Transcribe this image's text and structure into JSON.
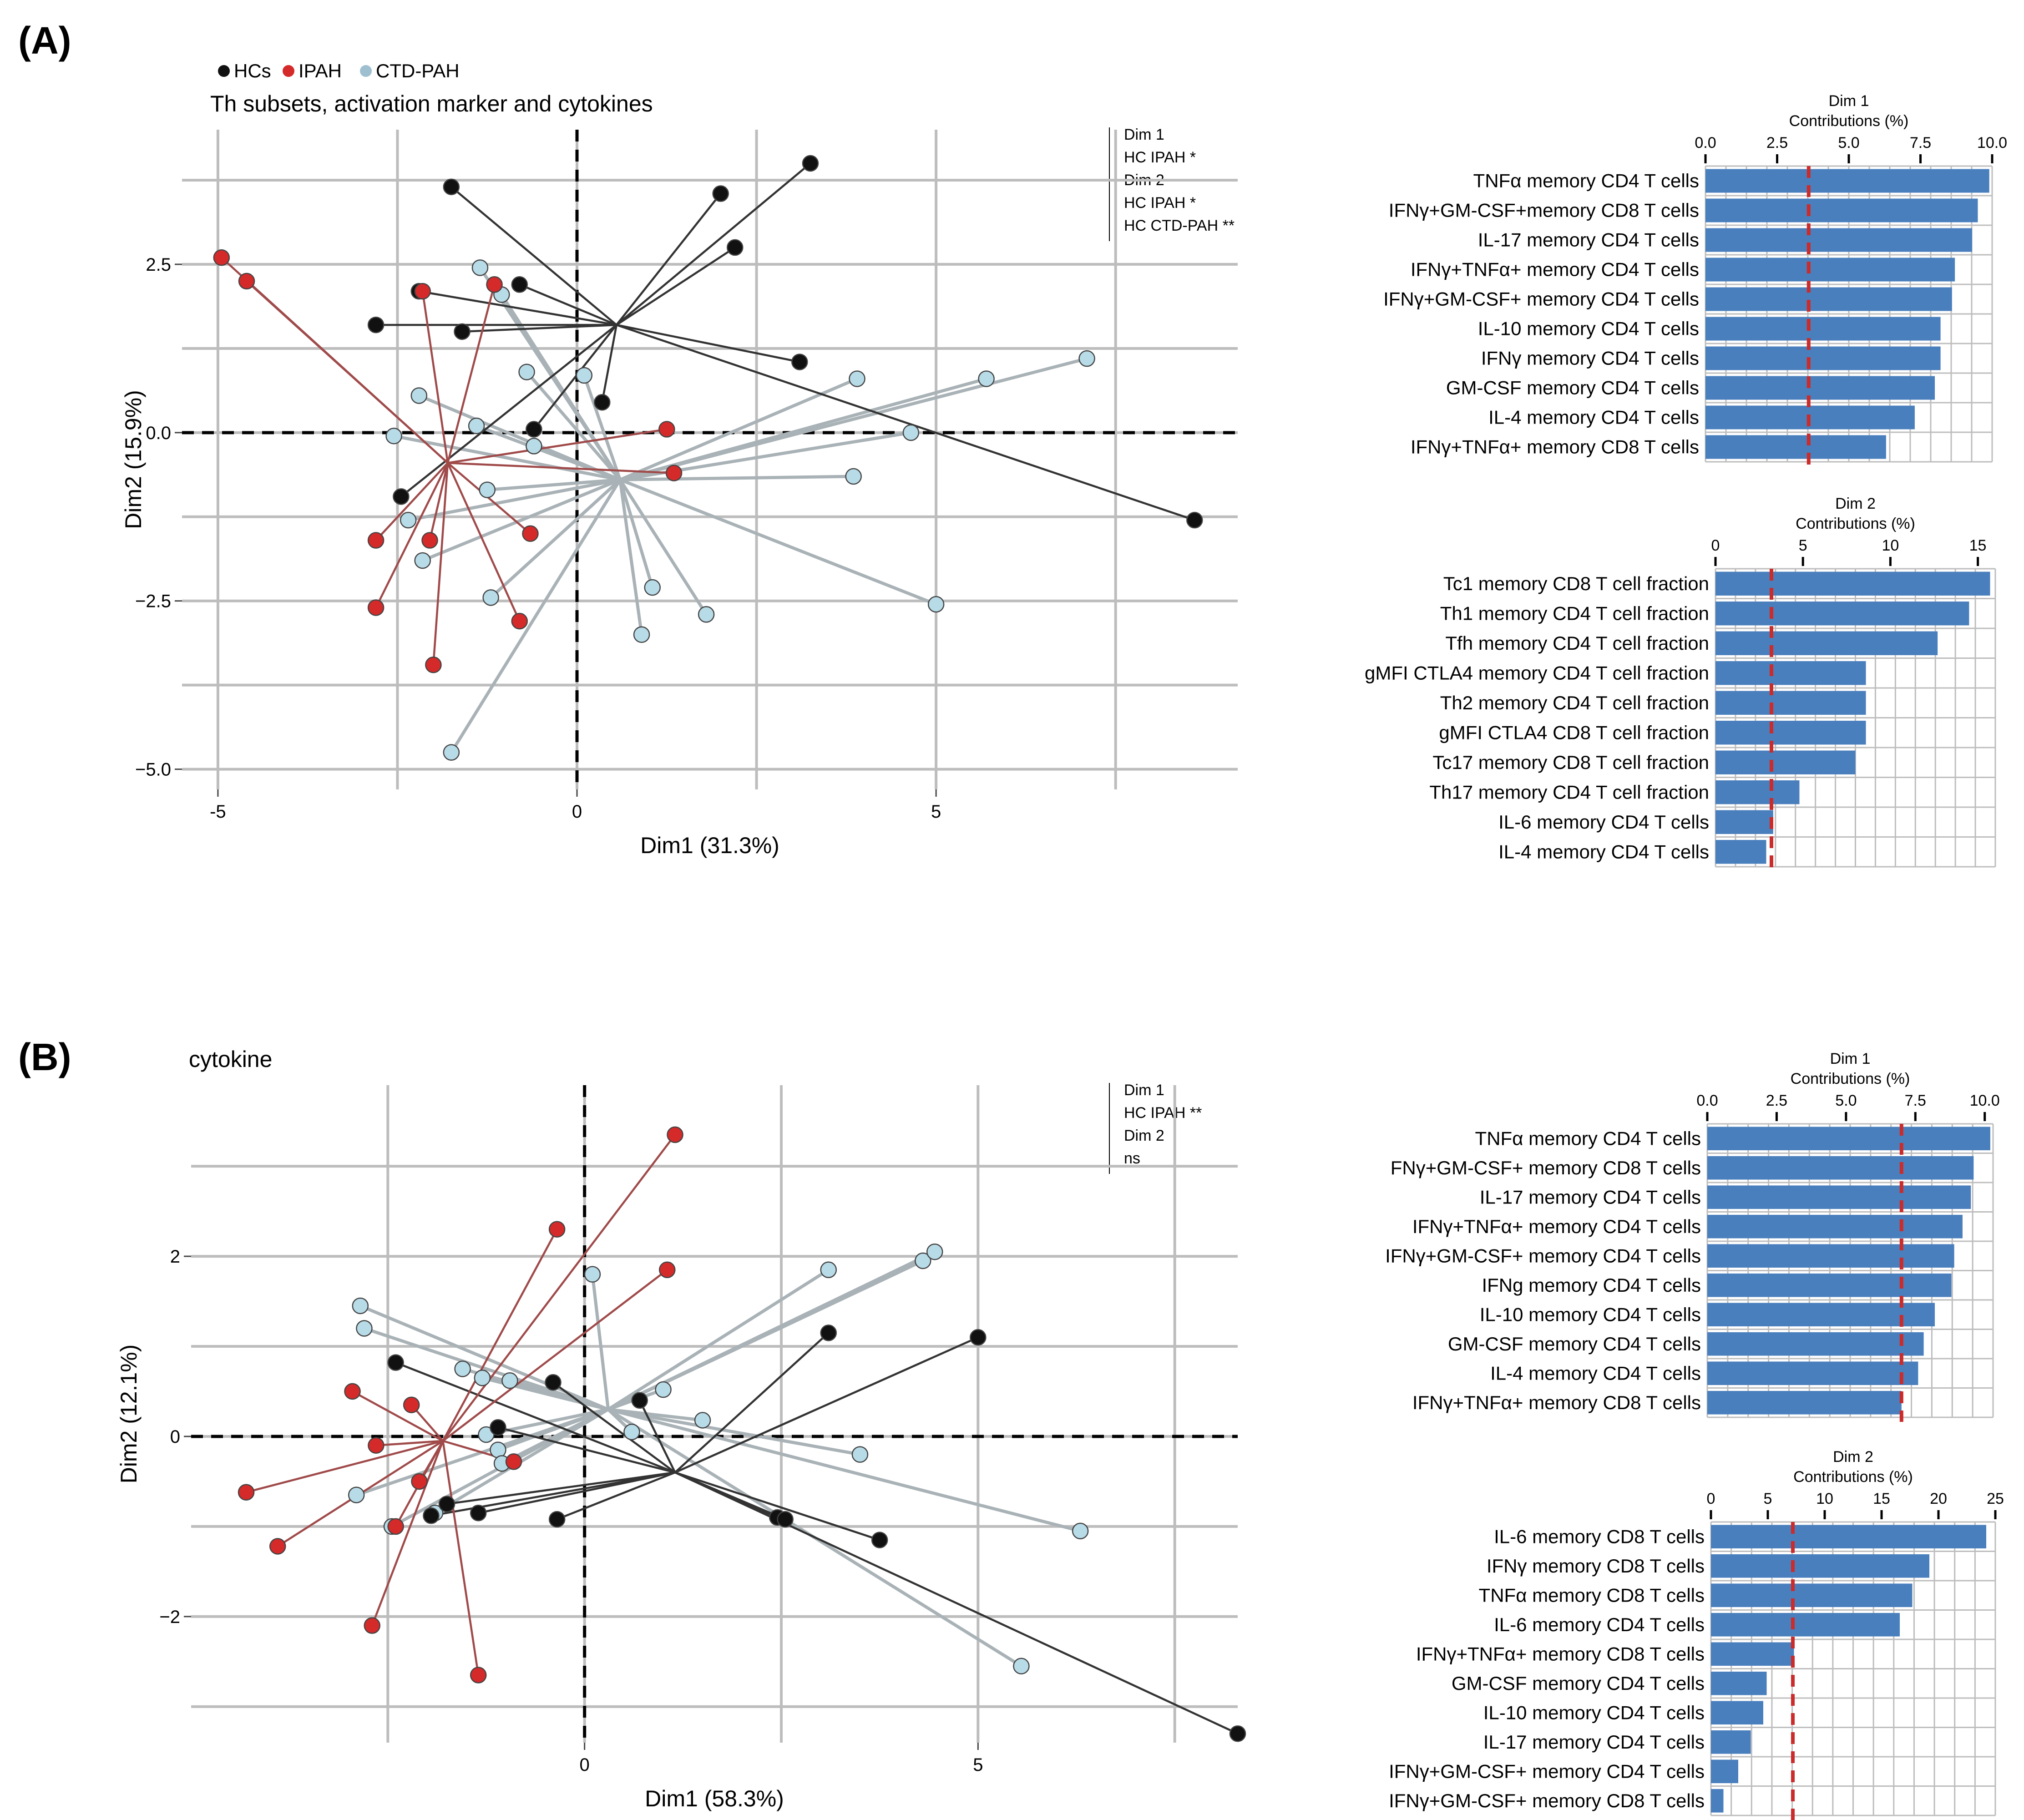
{
  "panels": [
    {
      "tag": "(A)",
      "legend": [
        {
          "label": "HCs",
          "color": "#111111"
        },
        {
          "label": "IPAH",
          "color": "#d42a2a"
        },
        {
          "label": "CTD-PAH",
          "color": "#9dbfd0"
        }
      ],
      "title": "Th subsets, activation marker and cytokines",
      "annotation": [
        "Dim 1",
        "HC IPAH *",
        "Dim 2",
        "HC IPAH *",
        "HC CTD-PAH **"
      ]
    },
    {
      "tag": "(B)",
      "legend": [],
      "title": "cytokine",
      "annotation": [
        "Dim 1",
        "HC IPAH **",
        "Dim 2",
        "ns"
      ]
    }
  ],
  "colors": {
    "HC": "#111111",
    "IPAH": "#d42a2a",
    "CTD": "#b8dbe8",
    "CTD_line": "#a9b2b6",
    "HC_line": "#333333",
    "IPAH_line": "#a04a4a",
    "bar": "#4a7fbd",
    "threshold": "#cc2b2b",
    "grid": "#bdbdbd"
  },
  "chart_data": [
    {
      "id": "A-pca",
      "type": "scatter",
      "title": "Th subsets, activation marker and cytokines",
      "xlabel": "Dim1 (31.3%)",
      "ylabel": "Dim2 (15.9%)",
      "xlim": [
        -5.5,
        9.2
      ],
      "ylim": [
        -5.3,
        4.5
      ],
      "xgrid": [
        -5,
        -2.5,
        0,
        2.5,
        5,
        7.5
      ],
      "ygrid": [
        -5,
        -3.75,
        -2.5,
        -1.25,
        0,
        1.25,
        2.5,
        3.75
      ],
      "xticks": [
        {
          "v": -5,
          "l": "-5"
        },
        {
          "v": 0,
          "l": "0"
        },
        {
          "v": 5,
          "l": "5"
        }
      ],
      "yticks": [
        {
          "v": -5,
          "l": "−5.0"
        },
        {
          "v": -2.5,
          "l": "−2.5"
        },
        {
          "v": 0,
          "l": "0.0"
        },
        {
          "v": 2.5,
          "l": "2.5"
        }
      ],
      "centroids": {
        "HC": [
          0.55,
          1.6
        ],
        "IPAH": [
          -1.8,
          -0.45
        ],
        "CTD": [
          0.6,
          -0.7
        ]
      },
      "groups": [
        {
          "name": "HC",
          "points": [
            [
              -1.75,
              3.65
            ],
            [
              2.0,
              3.55
            ],
            [
              3.25,
              4.0
            ],
            [
              2.2,
              2.75
            ],
            [
              -2.2,
              2.1
            ],
            [
              -0.8,
              2.2
            ],
            [
              -2.8,
              1.6
            ],
            [
              -1.6,
              1.5
            ],
            [
              3.1,
              1.05
            ],
            [
              0.35,
              0.45
            ],
            [
              -0.6,
              0.05
            ],
            [
              -2.45,
              -0.95
            ],
            [
              8.6,
              -1.3
            ]
          ]
        },
        {
          "name": "IPAH",
          "points": [
            [
              -4.95,
              2.6
            ],
            [
              -4.6,
              2.25
            ],
            [
              -2.15,
              2.1
            ],
            [
              -1.15,
              2.2
            ],
            [
              1.25,
              0.05
            ],
            [
              1.35,
              -0.6
            ],
            [
              -2.8,
              -1.6
            ],
            [
              -2.05,
              -1.6
            ],
            [
              -0.65,
              -1.5
            ],
            [
              -2.8,
              -2.6
            ],
            [
              -0.8,
              -2.8
            ],
            [
              -2.0,
              -3.45
            ]
          ]
        },
        {
          "name": "CTD",
          "points": [
            [
              -1.35,
              2.45
            ],
            [
              -1.05,
              2.05
            ],
            [
              -0.7,
              0.9
            ],
            [
              0.1,
              0.85
            ],
            [
              3.9,
              0.8
            ],
            [
              5.7,
              0.8
            ],
            [
              7.1,
              1.1
            ],
            [
              -2.2,
              0.55
            ],
            [
              -1.4,
              0.1
            ],
            [
              -2.55,
              -0.05
            ],
            [
              -0.6,
              -0.2
            ],
            [
              4.65,
              0.0
            ],
            [
              -1.25,
              -0.85
            ],
            [
              3.85,
              -0.65
            ],
            [
              -2.35,
              -1.3
            ],
            [
              -2.15,
              -1.9
            ],
            [
              -1.2,
              -2.45
            ],
            [
              1.05,
              -2.3
            ],
            [
              0.9,
              -3.0
            ],
            [
              1.8,
              -2.7
            ],
            [
              5.0,
              -2.55
            ],
            [
              -1.75,
              -4.75
            ]
          ]
        }
      ]
    },
    {
      "id": "A-dim1-contrib",
      "type": "bar",
      "title": "Dim 1",
      "axis_label": "Contributions (%)",
      "xlim": [
        0,
        10
      ],
      "ticks": [
        0,
        2.5,
        5,
        7.5,
        10
      ],
      "tick_labels": [
        "0.0",
        "2.5",
        "5.0",
        "7.5",
        "10.0"
      ],
      "threshold": 3.6,
      "categories": [
        "TNFα memory CD4 T cells",
        "IFNγ+GM-CSF+memory CD8 T cells",
        "IL-17 memory CD4 T cells",
        "IFNγ+TNFα+ memory CD4 T cells",
        "IFNγ+GM-CSF+ memory CD4 T cells",
        "IL-10 memory CD4 T cells",
        "IFNγ memory CD4 T cells",
        "GM-CSF memory CD4 T cells",
        "IL-4 memory CD4 T cells",
        "IFNγ+TNFα+ memory CD8 T cells"
      ],
      "values": [
        9.9,
        9.5,
        9.3,
        8.7,
        8.6,
        8.2,
        8.2,
        8.0,
        7.3,
        6.3
      ]
    },
    {
      "id": "A-dim2-contrib",
      "type": "bar",
      "title": "Dim 2",
      "axis_label": "Contributions (%)",
      "xlim": [
        0,
        16
      ],
      "ticks": [
        0,
        5,
        10,
        15
      ],
      "tick_labels": [
        "0",
        "5",
        "10",
        "15"
      ],
      "threshold": 3.2,
      "categories": [
        "Tc1 memory CD8 T cell fraction",
        "Th1 memory CD4 T cell fraction",
        "Tfh memory CD4 T cell fraction",
        "gMFI CTLA4 memory CD4 T cell fraction",
        "Th2 memory CD4 T cell fraction",
        "gMFI CTLA4 CD8 T cell fraction",
        "Tc17 memory CD8 T cell fraction",
        "Th17 memory CD4 T cell fraction",
        "IL-6 memory CD4 T cells",
        "IL-4 memory CD4 T cells"
      ],
      "values": [
        15.7,
        14.5,
        12.7,
        8.6,
        8.6,
        8.6,
        8.0,
        4.8,
        3.3,
        2.9
      ]
    },
    {
      "id": "B-pca",
      "type": "scatter",
      "title": "cytokine",
      "xlabel": "Dim1 (58.3%)",
      "ylabel": "Dim2 (12.1%)",
      "xlim": [
        -5.0,
        8.3
      ],
      "ylim": [
        -3.4,
        3.9
      ],
      "xgrid": [
        -2.5,
        0,
        2.5,
        5,
        7.5
      ],
      "ygrid": [
        -3,
        -2,
        -1,
        0,
        1,
        2,
        3
      ],
      "xticks": [
        {
          "v": 0,
          "l": "0"
        },
        {
          "v": 5,
          "l": "5"
        }
      ],
      "yticks": [
        {
          "v": -2,
          "l": "−2"
        },
        {
          "v": 0,
          "l": "0"
        },
        {
          "v": 2,
          "l": "2"
        }
      ],
      "centroids": {
        "HC": [
          1.15,
          -0.4
        ],
        "IPAH": [
          -1.8,
          -0.05
        ],
        "CTD": [
          0.3,
          0.3
        ]
      },
      "groups": [
        {
          "name": "HC",
          "points": [
            [
              -2.4,
              0.82
            ],
            [
              -0.4,
              0.6
            ],
            [
              0.7,
              0.4
            ],
            [
              -1.1,
              0.1
            ],
            [
              3.1,
              1.15
            ],
            [
              5.0,
              1.1
            ],
            [
              -1.75,
              -0.75
            ],
            [
              -1.95,
              -0.88
            ],
            [
              -1.35,
              -0.85
            ],
            [
              -0.35,
              -0.92
            ],
            [
              2.45,
              -0.9
            ],
            [
              2.55,
              -0.92
            ],
            [
              3.75,
              -1.15
            ],
            [
              8.3,
              -3.3
            ]
          ]
        },
        {
          "name": "IPAH",
          "points": [
            [
              1.15,
              3.35
            ],
            [
              -0.35,
              2.3
            ],
            [
              1.05,
              1.85
            ],
            [
              -2.95,
              0.5
            ],
            [
              -2.2,
              0.35
            ],
            [
              -2.65,
              -0.1
            ],
            [
              -0.9,
              -0.28
            ],
            [
              -2.1,
              -0.5
            ],
            [
              -4.3,
              -0.62
            ],
            [
              -2.4,
              -1.0
            ],
            [
              -3.9,
              -1.22
            ],
            [
              -2.7,
              -2.1
            ],
            [
              -1.35,
              -2.65
            ]
          ]
        },
        {
          "name": "CTD",
          "points": [
            [
              0.1,
              1.8
            ],
            [
              3.1,
              1.85
            ],
            [
              4.3,
              1.95
            ],
            [
              4.45,
              2.05
            ],
            [
              -2.85,
              1.45
            ],
            [
              -2.8,
              1.2
            ],
            [
              -1.55,
              0.75
            ],
            [
              -0.95,
              0.62
            ],
            [
              1.0,
              0.52
            ],
            [
              -1.3,
              0.65
            ],
            [
              1.5,
              0.18
            ],
            [
              -1.25,
              0.02
            ],
            [
              0.6,
              0.05
            ],
            [
              -1.1,
              -0.15
            ],
            [
              -1.05,
              -0.3
            ],
            [
              3.5,
              -0.2
            ],
            [
              -2.9,
              -0.65
            ],
            [
              -2.45,
              -1.0
            ],
            [
              -1.9,
              -0.85
            ],
            [
              6.3,
              -1.05
            ],
            [
              5.55,
              -2.55
            ]
          ]
        }
      ]
    },
    {
      "id": "B-dim1-contrib",
      "type": "bar",
      "title": "Dim 1",
      "axis_label": "Contributions (%)",
      "xlim": [
        0,
        10.3
      ],
      "ticks": [
        0,
        2.5,
        5,
        7.5,
        10
      ],
      "tick_labels": [
        "0.0",
        "2.5",
        "5.0",
        "7.5",
        "10.0"
      ],
      "threshold": 7.0,
      "categories": [
        "TNFα memory CD4 T cells",
        "FNγ+GM-CSF+ memory CD8 T cells",
        "IL-17 memory CD4 T cells",
        "IFNγ+TNFα+ memory CD4 T cells",
        "IFNγ+GM-CSF+ memory CD4 T cells",
        "IFNg memory CD4 T cells",
        "IL-10 memory CD4 T cells",
        "GM-CSF memory CD4 T cells",
        "IL-4 memory CD4 T cells",
        "IFNγ+TNFα+ memory CD8 T cells"
      ],
      "values": [
        10.2,
        9.6,
        9.5,
        9.2,
        8.9,
        8.8,
        8.2,
        7.8,
        7.6,
        7.0
      ]
    },
    {
      "id": "B-dim2-contrib",
      "type": "bar",
      "title": "Dim 2",
      "axis_label": "Contributions (%)",
      "xlim": [
        0,
        25
      ],
      "ticks": [
        0,
        5,
        10,
        15,
        20,
        25
      ],
      "tick_labels": [
        "0",
        "5",
        "10",
        "15",
        "20",
        "25"
      ],
      "threshold": 7.2,
      "categories": [
        "IL-6 memory CD8 T cells",
        "IFNγ memory CD8 T cells",
        "TNFα memory CD8 T cells",
        "IL-6 memory CD4 T cells",
        "IFNγ+TNFα+ memory CD8 T cells",
        "GM-CSF memory CD4 T cells",
        "IL-10 memory CD4 T cells",
        "IL-17 memory CD4 T cells",
        "IFNγ+GM-CSF+ memory CD4 T cells",
        "IFNγ+GM-CSF+ memory CD8 T cells"
      ],
      "values": [
        24.2,
        19.2,
        17.7,
        16.6,
        7.3,
        4.9,
        4.6,
        3.5,
        2.4,
        1.1
      ]
    }
  ]
}
